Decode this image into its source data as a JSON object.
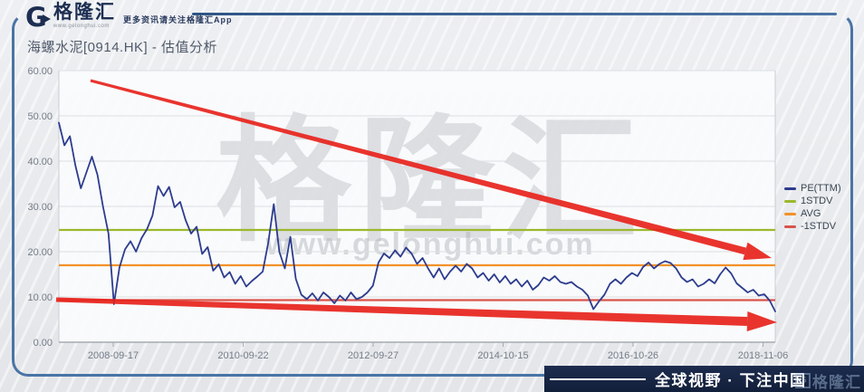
{
  "header": {
    "logo_letter": "G",
    "brand": "格隆汇",
    "brand_url": "www.gelonghui.com",
    "tagline": "更多资讯请关注格隆汇App"
  },
  "title": "海螺水泥[0914.HK] - 估值分析",
  "watermark": {
    "brand": "格隆汇",
    "url": "www.gelonghui.com"
  },
  "footer": {
    "slogan": "全球视野 · 下注中国",
    "brand": "格隆汇",
    "brand_icon_letter": "G"
  },
  "legend": [
    {
      "label": "PE(TTM)",
      "color": "#2d3c8e"
    },
    {
      "label": "1STDV",
      "color": "#9cb82c"
    },
    {
      "label": "AVG",
      "color": "#f2922a"
    },
    {
      "label": "-1STDV",
      "color": "#d9544a"
    }
  ],
  "chart_data": {
    "type": "line",
    "title": "海螺水泥[0914.HK] - 估值分析",
    "ylabel": "PE(TTM)",
    "ylim": [
      0,
      60
    ],
    "y_tick_step": 10,
    "y_tick_labels": [
      "0.00",
      "10.00",
      "20.00",
      "30.00",
      "40.00",
      "50.00",
      "60.00"
    ],
    "x_tick_labels": [
      "2008-09-17",
      "2010-09-22",
      "2012-09-27",
      "2014-10-15",
      "2016-10-26",
      "2018-11-06"
    ],
    "grid": true,
    "legend_position": "right",
    "series": [
      {
        "name": "PE(TTM)",
        "type": "line",
        "color": "#2d3c8e",
        "values": [
          48.5,
          43.5,
          45.5,
          39,
          34,
          37.5,
          41,
          37,
          30,
          24,
          8.4,
          16.5,
          20.5,
          22.3,
          20,
          23,
          25,
          28,
          34.5,
          32.3,
          34.3,
          29.8,
          31,
          27,
          24,
          25.5,
          19.5,
          21,
          15.8,
          17.2,
          14.3,
          15.5,
          12.9,
          14.6,
          12.3,
          13.5,
          14.5,
          15.6,
          22,
          30.5,
          20,
          16.3,
          23.3,
          14,
          10.5,
          9.5,
          10.8,
          9.2,
          11,
          10,
          8.6,
          10.3,
          9.2,
          11,
          9.5,
          10,
          11,
          12.5,
          17.6,
          19.6,
          18.6,
          20.3,
          18.9,
          20.9,
          19.6,
          17.3,
          18.6,
          16.3,
          14.3,
          16.3,
          13.9,
          15.6,
          16.9,
          15.6,
          17.3,
          16.3,
          14.3,
          15.3,
          13.6,
          15,
          13.2,
          14.6,
          12.9,
          13.9,
          12.3,
          13.6,
          11.6,
          12.6,
          14.3,
          13.6,
          14.6,
          13.3,
          12.9,
          13.3,
          12.3,
          11.6,
          10.3,
          7.3,
          9,
          10.5,
          12.9,
          13.9,
          12.9,
          14.3,
          15.3,
          14.6,
          16.6,
          17.6,
          16.3,
          17.3,
          17.9,
          17.5,
          16.3,
          14.3,
          13.3,
          13.9,
          12.3,
          12.9,
          13.9,
          13,
          15,
          16.5,
          15.2,
          13,
          12,
          11,
          11.6,
          10.3,
          10.6,
          9.2,
          6.8
        ]
      },
      {
        "name": "1STDV",
        "type": "hline",
        "value": 24.8,
        "color": "#9cb82c"
      },
      {
        "name": "AVG",
        "type": "hline",
        "value": 17.0,
        "color": "#f2922a"
      },
      {
        "name": "-1STDV",
        "type": "hline",
        "value": 9.3,
        "color": "#d9544a"
      }
    ],
    "annotations": [
      {
        "type": "arrow",
        "name": "downtrend-arrow-upper",
        "color": "#e7231c",
        "from": [
          100,
          89
        ],
        "to": [
          852,
          285
        ],
        "tail_width": 3,
        "shaft_width": 8,
        "head_length": 30,
        "head_width": 20
      },
      {
        "type": "arrow",
        "name": "downtrend-arrow-lower",
        "color": "#e7231c",
        "from": [
          62,
          331
        ],
        "to": [
          858,
          356
        ],
        "tail_width": 5,
        "shaft_width": 10,
        "head_length": 33,
        "head_width": 22
      }
    ]
  }
}
